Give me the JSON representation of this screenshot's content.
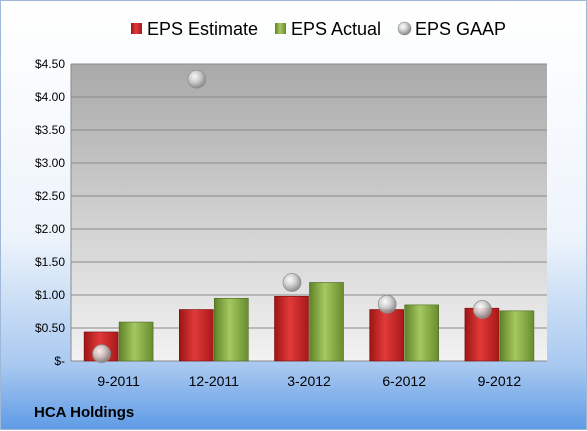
{
  "chart_data": {
    "type": "bar",
    "categories": [
      "9-2011",
      "12-2011",
      "3-2012",
      "6-2012",
      "9-2012"
    ],
    "series": [
      {
        "name": "EPS Estimate",
        "kind": "bar",
        "color": "#d42626",
        "values": [
          0.44,
          0.78,
          0.98,
          0.78,
          0.8
        ]
      },
      {
        "name": "EPS Actual",
        "kind": "bar",
        "color": "#8fb34a",
        "values": [
          0.59,
          0.95,
          1.19,
          0.85,
          0.76
        ]
      },
      {
        "name": "EPS GAAP",
        "kind": "scatter",
        "color": "#c0c0c0",
        "values": [
          0.11,
          4.27,
          1.19,
          0.86,
          0.78
        ]
      }
    ],
    "yticks": [
      "$-",
      "$0.50",
      "$1.00",
      "$1.50",
      "$2.00",
      "$2.50",
      "$3.00",
      "$3.50",
      "$4.00",
      "$4.50"
    ],
    "ylim": [
      0,
      4.5
    ],
    "ystep": 0.5,
    "grid": true,
    "legend_position": "top",
    "company_label": "HCA Holdings"
  }
}
